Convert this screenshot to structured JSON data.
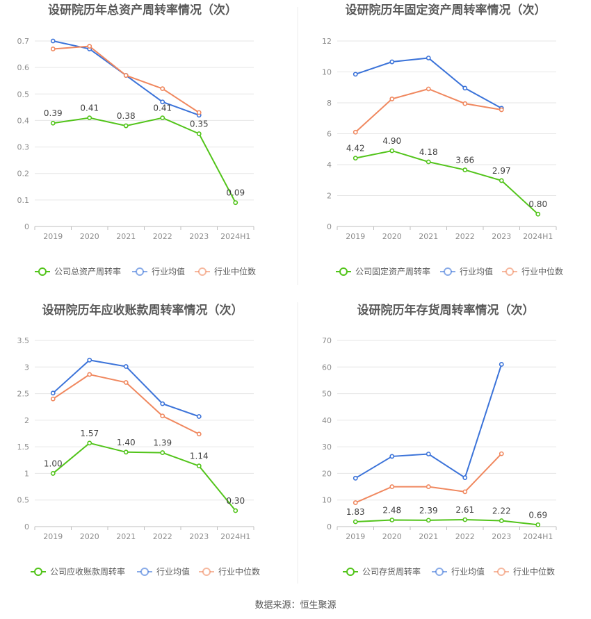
{
  "colors": {
    "company": "#52c41a",
    "industry_avg": "#3b73d9",
    "industry_median": "#f0885f",
    "grid": "#e6e6e6",
    "axis_text": "#8c8c8c",
    "title_text": "#595959",
    "label_text": "#404040"
  },
  "source_text": "数据来源：恒生聚源",
  "chart_data": [
    {
      "type": "line",
      "title": "设研院历年总资产周转率情况（次）",
      "categories": [
        "2019",
        "2020",
        "2021",
        "2022",
        "2023",
        "2024H1"
      ],
      "ylim": [
        0,
        0.7
      ],
      "yticks": [
        "0",
        "0.1",
        "0.2",
        "0.3",
        "0.4",
        "0.5",
        "0.6",
        "0.7"
      ],
      "series": [
        {
          "name": "公司总资产周转率",
          "role": "company",
          "values": [
            0.39,
            0.41,
            0.38,
            0.41,
            0.35,
            0.09
          ],
          "labels": [
            "0.39",
            "0.41",
            "0.38",
            "0.41",
            "0.35",
            "0.09"
          ]
        },
        {
          "name": "行业均值",
          "role": "industry_avg",
          "values": [
            0.7,
            0.67,
            0.57,
            0.47,
            0.42,
            null
          ]
        },
        {
          "name": "行业中位数",
          "role": "industry_median",
          "values": [
            0.67,
            0.68,
            0.57,
            0.52,
            0.43,
            null
          ]
        }
      ],
      "grid": true,
      "legend": "bottom"
    },
    {
      "type": "line",
      "title": "设研院历年固定资产周转率情况（次）",
      "categories": [
        "2019",
        "2020",
        "2021",
        "2022",
        "2023",
        "2024H1"
      ],
      "ylim": [
        0,
        12
      ],
      "yticks": [
        "0",
        "2",
        "4",
        "6",
        "8",
        "10",
        "12"
      ],
      "series": [
        {
          "name": "公司固定资产周转率",
          "role": "company",
          "values": [
            4.42,
            4.9,
            4.18,
            3.66,
            2.97,
            0.8
          ],
          "labels": [
            "4.42",
            "4.90",
            "4.18",
            "3.66",
            "2.97",
            "0.80"
          ]
        },
        {
          "name": "行业均值",
          "role": "industry_avg",
          "values": [
            9.85,
            10.65,
            10.9,
            8.95,
            7.65,
            null
          ]
        },
        {
          "name": "行业中位数",
          "role": "industry_median",
          "values": [
            6.1,
            8.25,
            8.9,
            7.95,
            7.55,
            null
          ]
        }
      ],
      "grid": true,
      "legend": "bottom"
    },
    {
      "type": "line",
      "title": "设研院历年应收账款周转率情况（次）",
      "categories": [
        "2019",
        "2020",
        "2021",
        "2022",
        "2023",
        "2024H1"
      ],
      "ylim": [
        0,
        3.5
      ],
      "yticks": [
        "0",
        "0.5",
        "1",
        "1.5",
        "2",
        "2.5",
        "3",
        "3.5"
      ],
      "series": [
        {
          "name": "公司应收账款周转率",
          "role": "company",
          "values": [
            1.0,
            1.57,
            1.4,
            1.39,
            1.14,
            0.3
          ],
          "labels": [
            "1.00",
            "1.57",
            "1.40",
            "1.39",
            "1.14",
            "0.30"
          ]
        },
        {
          "name": "行业均值",
          "role": "industry_avg",
          "values": [
            2.51,
            3.13,
            3.01,
            2.31,
            2.07,
            null
          ]
        },
        {
          "name": "行业中位数",
          "role": "industry_median",
          "values": [
            2.4,
            2.86,
            2.71,
            2.08,
            1.74,
            null
          ]
        }
      ],
      "grid": true,
      "legend": "bottom"
    },
    {
      "type": "line",
      "title": "设研院历年存货周转率情况（次）",
      "categories": [
        "2019",
        "2020",
        "2021",
        "2022",
        "2023",
        "2024H1"
      ],
      "ylim": [
        0,
        70
      ],
      "yticks": [
        "0",
        "10",
        "20",
        "30",
        "40",
        "50",
        "60",
        "70"
      ],
      "series": [
        {
          "name": "公司存货周转率",
          "role": "company",
          "values": [
            1.83,
            2.48,
            2.39,
            2.61,
            2.22,
            0.69
          ],
          "labels": [
            "1.83",
            "2.48",
            "2.39",
            "2.61",
            "2.22",
            "0.69"
          ]
        },
        {
          "name": "行业均值",
          "role": "industry_avg",
          "values": [
            18.2,
            26.4,
            27.3,
            18.4,
            61.0,
            null
          ]
        },
        {
          "name": "行业中位数",
          "role": "industry_median",
          "values": [
            9.0,
            15.0,
            15.0,
            13.1,
            27.4,
            null
          ]
        }
      ],
      "grid": true,
      "legend": "bottom"
    }
  ]
}
